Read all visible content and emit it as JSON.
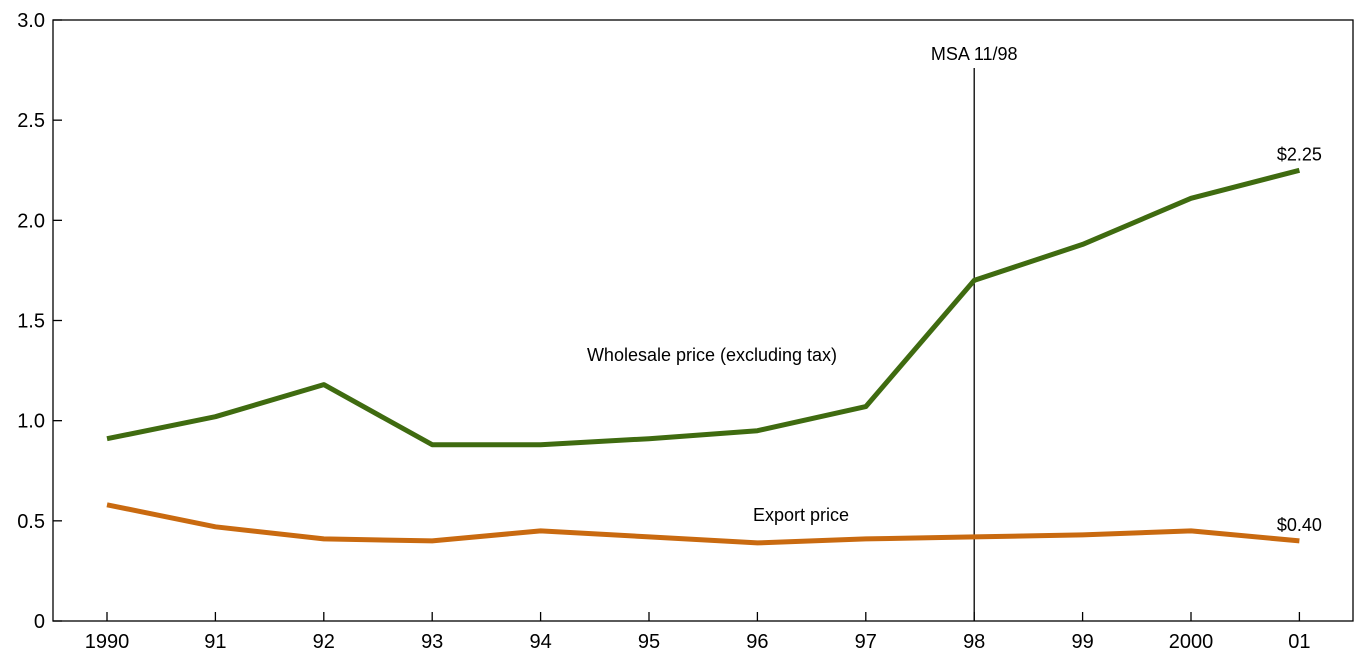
{
  "chart_data": {
    "type": "line",
    "title": "",
    "xlabel": "",
    "ylabel": "",
    "categories": [
      "1990",
      "91",
      "92",
      "93",
      "94",
      "95",
      "96",
      "97",
      "98",
      "99",
      "2000",
      "01"
    ],
    "ylim": [
      0,
      3.0
    ],
    "yticks": [
      "0",
      "0.5",
      "1.0",
      "1.5",
      "2.0",
      "2.5",
      "3.0"
    ],
    "grid": false,
    "legend": "none",
    "series": [
      {
        "name": "Wholesale price (excluding tax)",
        "color": "#3f6b10",
        "values": [
          0.91,
          1.02,
          1.18,
          0.88,
          0.88,
          0.91,
          0.95,
          1.07,
          1.7,
          1.88,
          2.11,
          2.25
        ],
        "end_label": "$2.25"
      },
      {
        "name": "Export price",
        "color": "#c96a10",
        "values": [
          0.58,
          0.47,
          0.41,
          0.4,
          0.45,
          0.42,
          0.39,
          0.41,
          0.42,
          0.43,
          0.45,
          0.4
        ],
        "end_label": "$0.40"
      }
    ],
    "reference_line": {
      "category": "98",
      "label": "MSA 11/98"
    }
  }
}
